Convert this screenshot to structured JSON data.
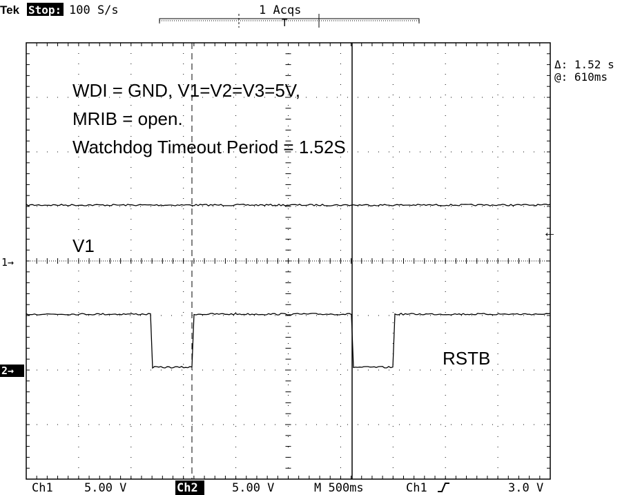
{
  "header": {
    "brand": "Tek",
    "status": "Stop:",
    "sample_rate": "100 S/s",
    "acquisitions": "1 Acqs",
    "trigger_marker": "T"
  },
  "annotations": [
    "WDI = GND, V1=V2=V3=5V,",
    "MRIB = open.",
    "Watchdog Timeout Period = 1.52S"
  ],
  "trace_labels": [
    "V1",
    "RSTB"
  ],
  "cursor_readout": {
    "delta": "Δ: 1.52 s",
    "at": "@: 610ms"
  },
  "channel_markers": [
    "1→",
    "2→"
  ],
  "footer": {
    "ch1": "Ch1",
    "ch1_scale": "5.00 V",
    "ch2": "Ch2",
    "ch2_scale": "5.00 V",
    "timebase": "M 500ms",
    "trigger_source": "Ch1",
    "trigger_level": "3.0 V"
  }
}
